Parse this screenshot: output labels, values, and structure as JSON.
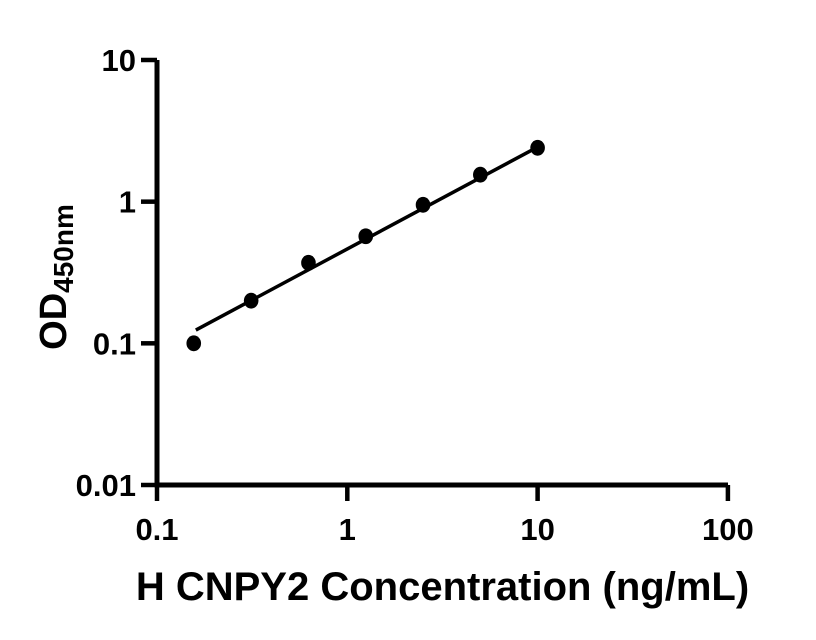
{
  "chart_data": {
    "type": "scatter",
    "title": "",
    "xlabel": "H CNPY2 Concentration (ng/mL)",
    "ylabel": "OD",
    "ylabel_subscript": "450nm",
    "x_scale": "log",
    "y_scale": "log",
    "xlim": [
      0.1,
      100
    ],
    "ylim": [
      0.01,
      10
    ],
    "grid": false,
    "legend": false,
    "x_ticks": [
      {
        "value": 0.1,
        "label": "0.1"
      },
      {
        "value": 1,
        "label": "1"
      },
      {
        "value": 10,
        "label": "10"
      },
      {
        "value": 100,
        "label": "100"
      }
    ],
    "y_ticks": [
      {
        "value": 0.01,
        "label": "0.01"
      },
      {
        "value": 0.1,
        "label": "0.1"
      },
      {
        "value": 1,
        "label": "1"
      },
      {
        "value": 10,
        "label": "10"
      }
    ],
    "points": [
      {
        "x": 0.156,
        "y": 0.1
      },
      {
        "x": 0.3125,
        "y": 0.2
      },
      {
        "x": 0.625,
        "y": 0.37
      },
      {
        "x": 1.25,
        "y": 0.57
      },
      {
        "x": 2.5,
        "y": 0.95
      },
      {
        "x": 5,
        "y": 1.55
      },
      {
        "x": 10,
        "y": 2.4
      }
    ],
    "trendline": {
      "x1": 0.16,
      "y1": 0.124,
      "x2": 10,
      "y2": 2.43
    },
    "colors": {
      "marker": "#000000",
      "line": "#000000",
      "axis": "#000000",
      "text": "#000000",
      "background": "#ffffff"
    }
  }
}
